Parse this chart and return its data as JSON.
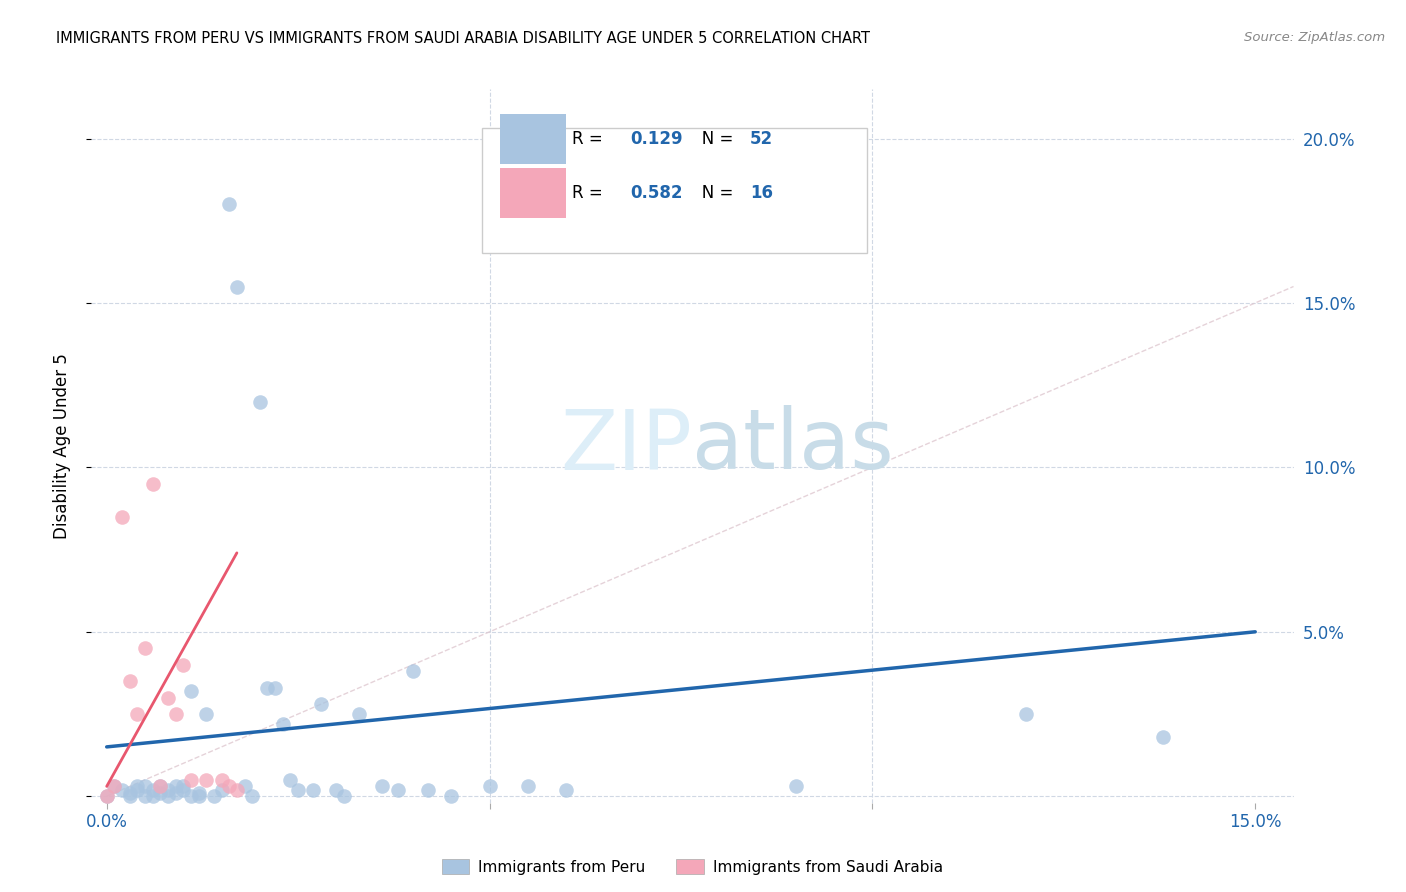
{
  "title": "IMMIGRANTS FROM PERU VS IMMIGRANTS FROM SAUDI ARABIA DISABILITY AGE UNDER 5 CORRELATION CHART",
  "source": "Source: ZipAtlas.com",
  "ylabel": "Disability Age Under 5",
  "xlim": [
    -0.002,
    0.155
  ],
  "ylim": [
    -0.002,
    0.215
  ],
  "xticks": [
    0.0,
    0.15
  ],
  "yticks": [
    0.0,
    0.05,
    0.1,
    0.15,
    0.2
  ],
  "ytick_labels_right": [
    "",
    "5.0%",
    "10.0%",
    "15.0%",
    "20.0%"
  ],
  "xtick_labels": [
    "0.0%",
    "15.0%"
  ],
  "peru_R": 0.129,
  "peru_N": 52,
  "saudi_R": 0.582,
  "saudi_N": 16,
  "peru_color": "#a8c4e0",
  "saudi_color": "#f4a7b9",
  "peru_line_color": "#2166ac",
  "saudi_line_color": "#e8576e",
  "diagonal_color": "#dfc8d0",
  "peru_x": [
    0.0,
    0.001,
    0.002,
    0.003,
    0.003,
    0.004,
    0.004,
    0.005,
    0.005,
    0.006,
    0.006,
    0.007,
    0.007,
    0.008,
    0.008,
    0.009,
    0.009,
    0.01,
    0.01,
    0.011,
    0.011,
    0.012,
    0.012,
    0.013,
    0.014,
    0.015,
    0.016,
    0.017,
    0.018,
    0.019,
    0.02,
    0.021,
    0.022,
    0.023,
    0.024,
    0.025,
    0.027,
    0.028,
    0.03,
    0.031,
    0.033,
    0.036,
    0.038,
    0.04,
    0.042,
    0.045,
    0.05,
    0.055,
    0.06,
    0.09,
    0.12,
    0.138
  ],
  "peru_y": [
    0.0,
    0.003,
    0.002,
    0.001,
    0.0,
    0.003,
    0.002,
    0.003,
    0.0,
    0.002,
    0.0,
    0.003,
    0.001,
    0.002,
    0.0,
    0.003,
    0.001,
    0.003,
    0.002,
    0.0,
    0.032,
    0.0,
    0.001,
    0.025,
    0.0,
    0.002,
    0.18,
    0.155,
    0.003,
    0.0,
    0.12,
    0.033,
    0.033,
    0.022,
    0.005,
    0.002,
    0.002,
    0.028,
    0.002,
    0.0,
    0.025,
    0.003,
    0.002,
    0.038,
    0.002,
    0.0,
    0.003,
    0.003,
    0.002,
    0.003,
    0.025,
    0.018
  ],
  "saudi_x": [
    0.0,
    0.001,
    0.002,
    0.003,
    0.004,
    0.005,
    0.006,
    0.007,
    0.008,
    0.009,
    0.01,
    0.011,
    0.013,
    0.015,
    0.016,
    0.017
  ],
  "saudi_y": [
    0.0,
    0.003,
    0.085,
    0.035,
    0.025,
    0.045,
    0.095,
    0.003,
    0.03,
    0.025,
    0.04,
    0.005,
    0.005,
    0.005,
    0.003,
    0.002
  ],
  "peru_trend_x": [
    0.0,
    0.15
  ],
  "peru_trend_y": [
    0.015,
    0.05
  ],
  "saudi_trend_x": [
    0.0,
    0.017
  ],
  "saudi_trend_y": [
    0.003,
    0.074
  ],
  "watermark_zip": "ZIP",
  "watermark_atlas": "atlas",
  "legend_peru": "Immigrants from Peru",
  "legend_saudi": "Immigrants from Saudi Arabia"
}
